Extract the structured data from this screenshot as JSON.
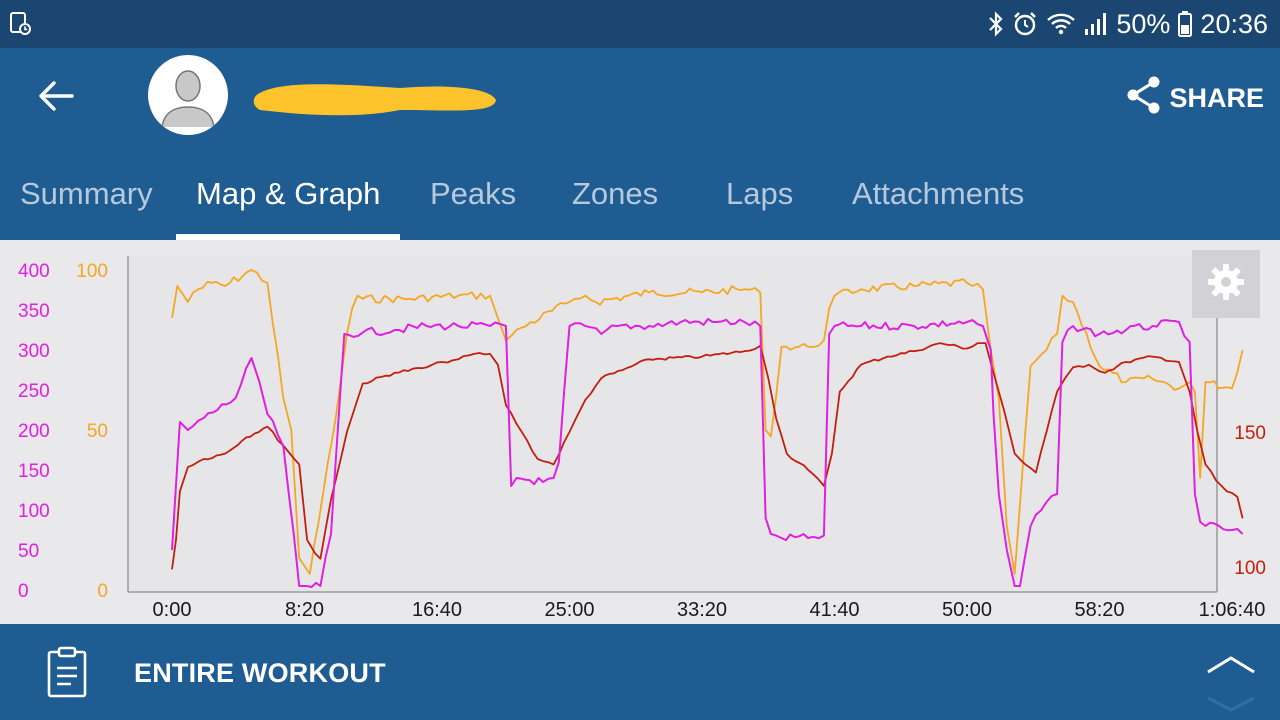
{
  "status_bar": {
    "battery": "50%",
    "time": "20:36",
    "icons": [
      "screen-recorder-icon",
      "bluetooth-icon",
      "alarm-icon",
      "wifi-icon",
      "signal-icon",
      "battery-icon"
    ]
  },
  "header": {
    "back_icon": "arrow-left-icon",
    "avatar_icon": "person-silhouette-icon",
    "share_label": "SHARE",
    "share_icon": "share-icon"
  },
  "tabs": [
    {
      "label": "Summary",
      "active": false
    },
    {
      "label": "Map & Graph",
      "active": true
    },
    {
      "label": "Peaks",
      "active": false
    },
    {
      "label": "Zones",
      "active": false
    },
    {
      "label": "Laps",
      "active": false
    },
    {
      "label": "Attachments",
      "active": false
    }
  ],
  "chart_data": {
    "type": "line",
    "x_tick_labels": [
      "0:00",
      "8:20",
      "16:40",
      "25:00",
      "33:20",
      "41:40",
      "50:00",
      "58:20",
      "1:06:40"
    ],
    "xlim_seconds": [
      0,
      4000
    ],
    "axes": {
      "power": {
        "side": "left",
        "color": "#e020e0",
        "tick_labels": [
          "0",
          "50",
          "100",
          "150",
          "200",
          "250",
          "300",
          "350",
          "400"
        ],
        "ylim": [
          0,
          400
        ]
      },
      "cadence": {
        "side": "left",
        "color": "#f5a623",
        "tick_labels": [
          "0",
          "50",
          "100"
        ],
        "ylim": [
          0,
          100
        ]
      },
      "heart_rate": {
        "side": "right",
        "color": "#c41e0e",
        "tick_labels": [
          "100",
          "150"
        ],
        "ylim": [
          91,
          212
        ]
      }
    },
    "series": [
      {
        "axis": "power",
        "color": "#e020e0",
        "x": [
          0,
          30,
          60,
          120,
          240,
          300,
          330,
          360,
          420,
          480,
          490,
          510,
          560,
          600,
          650,
          720,
          840,
          960,
          1080,
          1200,
          1260,
          1280,
          1300,
          1400,
          1440,
          1460,
          1500,
          1560,
          1620,
          1680,
          1800,
          1920,
          2040,
          2160,
          2220,
          2240,
          2260,
          2300,
          2400,
          2460,
          2480,
          2500,
          2600,
          2800,
          3000,
          3060,
          3090,
          3100,
          3120,
          3150,
          3180,
          3200,
          3240,
          3300,
          3340,
          3360,
          3400,
          3500,
          3600,
          3700,
          3800,
          3840,
          3860,
          3880,
          3900,
          4000,
          4040
        ],
        "y": [
          50,
          210,
          200,
          215,
          240,
          290,
          260,
          220,
          180,
          5,
          5,
          5,
          5,
          70,
          320,
          322,
          325,
          330,
          330,
          330,
          330,
          130,
          140,
          135,
          140,
          160,
          330,
          330,
          320,
          330,
          330,
          335,
          335,
          335,
          330,
          90,
          70,
          65,
          65,
          68,
          320,
          330,
          330,
          330,
          335,
          330,
          300,
          220,
          120,
          50,
          5,
          5,
          80,
          110,
          120,
          310,
          330,
          320,
          325,
          330,
          335,
          310,
          120,
          85,
          80,
          75,
          70
        ]
      },
      {
        "axis": "cadence",
        "color": "#f5a623",
        "x": [
          0,
          20,
          60,
          80,
          100,
          150,
          200,
          300,
          360,
          420,
          450,
          480,
          520,
          570,
          620,
          660,
          680,
          700,
          720,
          900,
          1080,
          1200,
          1230,
          1260,
          1320,
          1500,
          1520,
          1560,
          1600,
          1800,
          2000,
          2160,
          2220,
          2240,
          2260,
          2300,
          2400,
          2460,
          2480,
          2500,
          2600,
          2800,
          3000,
          3060,
          3090,
          3120,
          3150,
          3180,
          3240,
          3300,
          3340,
          3360,
          3400,
          3500,
          3600,
          3700,
          3800,
          3840,
          3860,
          3880,
          3900,
          4000,
          4040
        ],
        "y": [
          85,
          95,
          90,
          93,
          94,
          96,
          95,
          100,
          96,
          60,
          50,
          10,
          5,
          30,
          55,
          80,
          88,
          92,
          91,
          91,
          92,
          92,
          85,
          78,
          82,
          90,
          91,
          92,
          90,
          93,
          93,
          94,
          93,
          50,
          48,
          76,
          76,
          78,
          88,
          92,
          94,
          95,
          96,
          94,
          75,
          60,
          20,
          5,
          70,
          75,
          80,
          92,
          90,
          70,
          65,
          66,
          63,
          65,
          62,
          35,
          65,
          63,
          75
        ]
      },
      {
        "axis": "heart_rate",
        "color": "#c41e0e",
        "x": [
          0,
          15,
          30,
          60,
          120,
          200,
          280,
          360,
          420,
          480,
          510,
          540,
          560,
          600,
          660,
          720,
          840,
          960,
          1020,
          1080,
          1140,
          1200,
          1230,
          1260,
          1320,
          1380,
          1440,
          1500,
          1560,
          1620,
          1700,
          1800,
          2000,
          2160,
          2220,
          2250,
          2280,
          2320,
          2400,
          2460,
          2490,
          2520,
          2600,
          2700,
          2800,
          2900,
          3000,
          3040,
          3070,
          3100,
          3140,
          3180,
          3220,
          3260,
          3300,
          3340,
          3370,
          3400,
          3460,
          3520,
          3600,
          3700,
          3800,
          3840,
          3870,
          3900,
          3940,
          3980,
          4020,
          4040
        ],
        "y": [
          99,
          110,
          128,
          137,
          140,
          142,
          148,
          152,
          145,
          138,
          110,
          105,
          103,
          125,
          150,
          168,
          172,
          174,
          176,
          177,
          179,
          179,
          175,
          160,
          150,
          140,
          138,
          150,
          162,
          170,
          173,
          177,
          178,
          180,
          182,
          170,
          155,
          142,
          136,
          130,
          142,
          165,
          175,
          178,
          180,
          183,
          181,
          183,
          183,
          172,
          158,
          142,
          138,
          135,
          150,
          165,
          170,
          174,
          175,
          172,
          176,
          178,
          176,
          165,
          150,
          138,
          132,
          128,
          126,
          118
        ]
      }
    ]
  },
  "bottom_bar": {
    "label": "ENTIRE WORKOUT",
    "icon": "clipboard-icon",
    "expand_icon": "chevron-up-down-icon"
  },
  "settings_icon": "gear-icon"
}
